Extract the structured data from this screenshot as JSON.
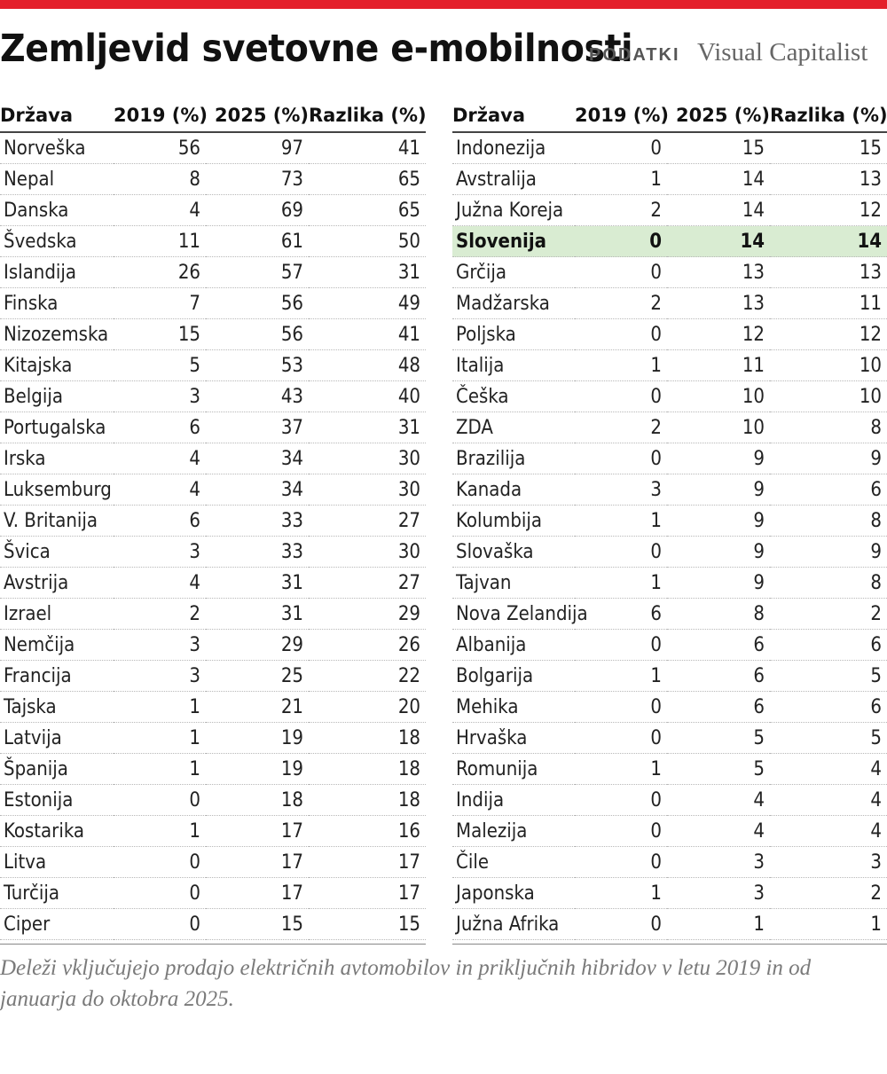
{
  "header": {
    "title": "Zemljevid svetovne e-mobilnosti",
    "section": "PODATKI",
    "source": "Visual Capitalist"
  },
  "columns": [
    "Država",
    "2019 (%)",
    "2025 (%)",
    "Razlika (%)"
  ],
  "highlight_color": "#d9ecd2",
  "accent_color": "#e4202b",
  "left_rows": [
    {
      "country": "Norveška",
      "y2019": "56",
      "y2025": "97",
      "diff": "41"
    },
    {
      "country": "Nepal",
      "y2019": "8",
      "y2025": "73",
      "diff": "65"
    },
    {
      "country": "Danska",
      "y2019": "4",
      "y2025": "69",
      "diff": "65"
    },
    {
      "country": "Švedska",
      "y2019": "11",
      "y2025": "61",
      "diff": "50"
    },
    {
      "country": "Islandija",
      "y2019": "26",
      "y2025": "57",
      "diff": "31"
    },
    {
      "country": "Finska",
      "y2019": "7",
      "y2025": "56",
      "diff": "49"
    },
    {
      "country": "Nizozemska",
      "y2019": "15",
      "y2025": "56",
      "diff": "41"
    },
    {
      "country": "Kitajska",
      "y2019": "5",
      "y2025": "53",
      "diff": "48"
    },
    {
      "country": "Belgija",
      "y2019": "3",
      "y2025": "43",
      "diff": "40"
    },
    {
      "country": "Portugalska",
      "y2019": "6",
      "y2025": "37",
      "diff": "31"
    },
    {
      "country": "Irska",
      "y2019": "4",
      "y2025": "34",
      "diff": "30"
    },
    {
      "country": "Luksemburg",
      "y2019": "4",
      "y2025": "34",
      "diff": "30"
    },
    {
      "country": "V. Britanija",
      "y2019": "6",
      "y2025": "33",
      "diff": "27"
    },
    {
      "country": "Švica",
      "y2019": "3",
      "y2025": "33",
      "diff": "30"
    },
    {
      "country": "Avstrija",
      "y2019": "4",
      "y2025": "31",
      "diff": "27"
    },
    {
      "country": "Izrael",
      "y2019": "2",
      "y2025": "31",
      "diff": "29"
    },
    {
      "country": "Nemčija",
      "y2019": "3",
      "y2025": "29",
      "diff": "26"
    },
    {
      "country": "Francija",
      "y2019": "3",
      "y2025": "25",
      "diff": "22"
    },
    {
      "country": "Tajska",
      "y2019": "1",
      "y2025": "21",
      "diff": "20"
    },
    {
      "country": "Latvija",
      "y2019": "1",
      "y2025": "19",
      "diff": "18"
    },
    {
      "country": "Španija",
      "y2019": "1",
      "y2025": "19",
      "diff": "18"
    },
    {
      "country": "Estonija",
      "y2019": "0",
      "y2025": "18",
      "diff": "18"
    },
    {
      "country": "Kostarika",
      "y2019": "1",
      "y2025": "17",
      "diff": "16"
    },
    {
      "country": "Litva",
      "y2019": "0",
      "y2025": "17",
      "diff": "17"
    },
    {
      "country": "Turčija",
      "y2019": "0",
      "y2025": "17",
      "diff": "17"
    },
    {
      "country": "Ciper",
      "y2019": "0",
      "y2025": "15",
      "diff": "15"
    }
  ],
  "right_rows": [
    {
      "country": "Indonezija",
      "y2019": "0",
      "y2025": "15",
      "diff": "15"
    },
    {
      "country": "Avstralija",
      "y2019": "1",
      "y2025": "14",
      "diff": "13"
    },
    {
      "country": "Južna Koreja",
      "y2019": "2",
      "y2025": "14",
      "diff": "12"
    },
    {
      "country": "Slovenija",
      "y2019": "0",
      "y2025": "14",
      "diff": "14",
      "highlight": true
    },
    {
      "country": "Grčija",
      "y2019": "0",
      "y2025": "13",
      "diff": "13"
    },
    {
      "country": "Madžarska",
      "y2019": "2",
      "y2025": "13",
      "diff": "11"
    },
    {
      "country": "Poljska",
      "y2019": "0",
      "y2025": "12",
      "diff": "12"
    },
    {
      "country": "Italija",
      "y2019": "1",
      "y2025": "11",
      "diff": "10"
    },
    {
      "country": "Češka",
      "y2019": "0",
      "y2025": "10",
      "diff": "10"
    },
    {
      "country": "ZDA",
      "y2019": "2",
      "y2025": "10",
      "diff": "8"
    },
    {
      "country": "Brazilija",
      "y2019": "0",
      "y2025": "9",
      "diff": "9"
    },
    {
      "country": "Kanada",
      "y2019": "3",
      "y2025": "9",
      "diff": "6"
    },
    {
      "country": "Kolumbija",
      "y2019": "1",
      "y2025": "9",
      "diff": "8"
    },
    {
      "country": "Slovaška",
      "y2019": "0",
      "y2025": "9",
      "diff": "9"
    },
    {
      "country": "Tajvan",
      "y2019": "1",
      "y2025": "9",
      "diff": "8"
    },
    {
      "country": "Nova Zelandija",
      "y2019": "6",
      "y2025": "8",
      "diff": "2"
    },
    {
      "country": "Albanija",
      "y2019": "0",
      "y2025": "6",
      "diff": "6"
    },
    {
      "country": "Bolgarija",
      "y2019": "1",
      "y2025": "6",
      "diff": "5"
    },
    {
      "country": "Mehika",
      "y2019": "0",
      "y2025": "6",
      "diff": "6"
    },
    {
      "country": "Hrvaška",
      "y2019": "0",
      "y2025": "5",
      "diff": "5"
    },
    {
      "country": "Romunija",
      "y2019": "1",
      "y2025": "5",
      "diff": "4"
    },
    {
      "country": "Indija",
      "y2019": "0",
      "y2025": "4",
      "diff": "4"
    },
    {
      "country": "Malezija",
      "y2019": "0",
      "y2025": "4",
      "diff": "4"
    },
    {
      "country": "Čile",
      "y2019": "0",
      "y2025": "3",
      "diff": "3"
    },
    {
      "country": "Japonska",
      "y2019": "1",
      "y2025": "3",
      "diff": "2"
    },
    {
      "country": "Južna Afrika",
      "y2019": "0",
      "y2025": "1",
      "diff": "1"
    }
  ],
  "footnote": "Deleži vključujejo prodajo električnih avtomobilov in priključnih hibridov v letu 2019  in od januarja do oktobra 2025."
}
